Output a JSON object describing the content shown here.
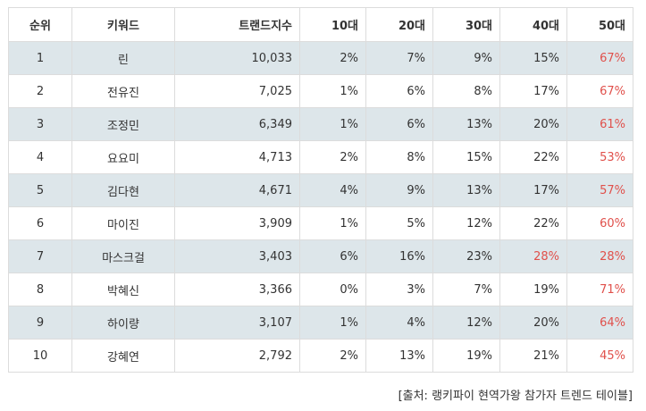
{
  "headers": {
    "rank": "순위",
    "keyword": "키워드",
    "index": "트랜드지수",
    "age10": "10대",
    "age20": "20대",
    "age30": "30대",
    "age40": "40대",
    "age50": "50대"
  },
  "rows": [
    {
      "rank": "1",
      "keyword": "린",
      "index": "10,033",
      "age10": "2%",
      "age20": "7%",
      "age30": "9%",
      "age40": "15%",
      "age50": "67%"
    },
    {
      "rank": "2",
      "keyword": "전유진",
      "index": "7,025",
      "age10": "1%",
      "age20": "6%",
      "age30": "8%",
      "age40": "17%",
      "age50": "67%"
    },
    {
      "rank": "3",
      "keyword": "조정민",
      "index": "6,349",
      "age10": "1%",
      "age20": "6%",
      "age30": "13%",
      "age40": "20%",
      "age50": "61%"
    },
    {
      "rank": "4",
      "keyword": "요요미",
      "index": "4,713",
      "age10": "2%",
      "age20": "8%",
      "age30": "15%",
      "age40": "22%",
      "age50": "53%"
    },
    {
      "rank": "5",
      "keyword": "김다현",
      "index": "4,671",
      "age10": "4%",
      "age20": "9%",
      "age30": "13%",
      "age40": "17%",
      "age50": "57%"
    },
    {
      "rank": "6",
      "keyword": "마이진",
      "index": "3,909",
      "age10": "1%",
      "age20": "5%",
      "age30": "12%",
      "age40": "22%",
      "age50": "60%"
    },
    {
      "rank": "7",
      "keyword": "마스크걸",
      "index": "3,403",
      "age10": "6%",
      "age20": "16%",
      "age30": "23%",
      "age40": "28%",
      "age50": "28%"
    },
    {
      "rank": "8",
      "keyword": "박혜신",
      "index": "3,366",
      "age10": "0%",
      "age20": "3%",
      "age30": "7%",
      "age40": "19%",
      "age50": "71%"
    },
    {
      "rank": "9",
      "keyword": "하이량",
      "index": "3,107",
      "age10": "1%",
      "age20": "4%",
      "age30": "12%",
      "age40": "20%",
      "age50": "64%"
    },
    {
      "rank": "10",
      "keyword": "강혜연",
      "index": "2,792",
      "age10": "2%",
      "age20": "13%",
      "age30": "19%",
      "age40": "21%",
      "age50": "45%"
    }
  ],
  "highlight_color": "#e0504b",
  "row_alt_color": "#dde6ea",
  "source": "[출처: 랭키파이 현역가왕 참가자 트렌드 테이블]"
}
